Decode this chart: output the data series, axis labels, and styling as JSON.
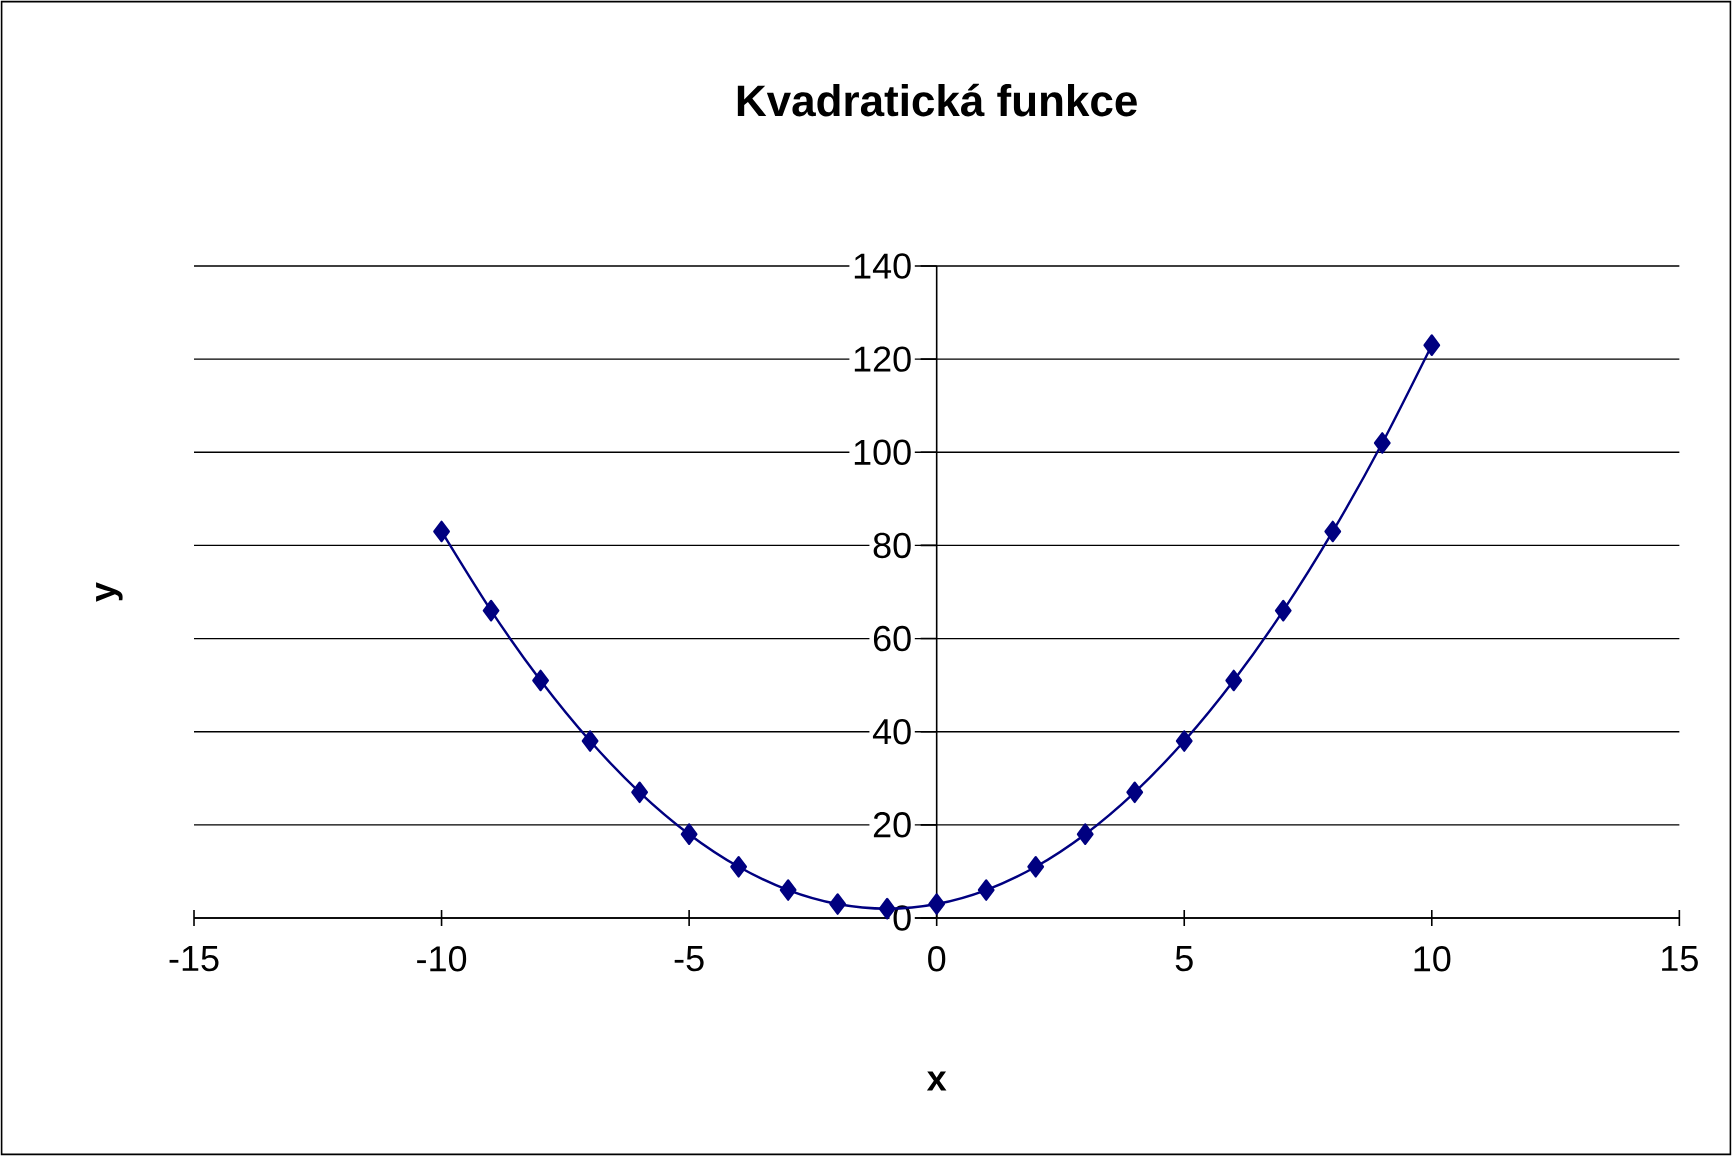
{
  "chart_data": {
    "type": "line",
    "title": "Kvadratická funkce",
    "xlabel": "x",
    "ylabel": "y",
    "x": [
      -10,
      -9,
      -8,
      -7,
      -6,
      -5,
      -4,
      -3,
      -2,
      -1,
      0,
      1,
      2,
      3,
      4,
      5,
      6,
      7,
      8,
      9,
      10
    ],
    "series": [
      {
        "color": "#000080",
        "values": [
          83,
          66,
          51,
          38,
          27,
          18,
          11,
          6,
          3,
          2,
          3,
          6,
          11,
          18,
          27,
          38,
          51,
          66,
          83,
          102,
          123
        ]
      }
    ],
    "xlim": [
      -15,
      15
    ],
    "ylim": [
      0,
      140
    ],
    "xticks": [
      -15,
      -10,
      -5,
      0,
      5,
      10,
      15
    ],
    "yticks": [
      0,
      20,
      40,
      60,
      80,
      100,
      120,
      140
    ],
    "grid": "y",
    "marker": "diamond",
    "line_style": "solid"
  }
}
